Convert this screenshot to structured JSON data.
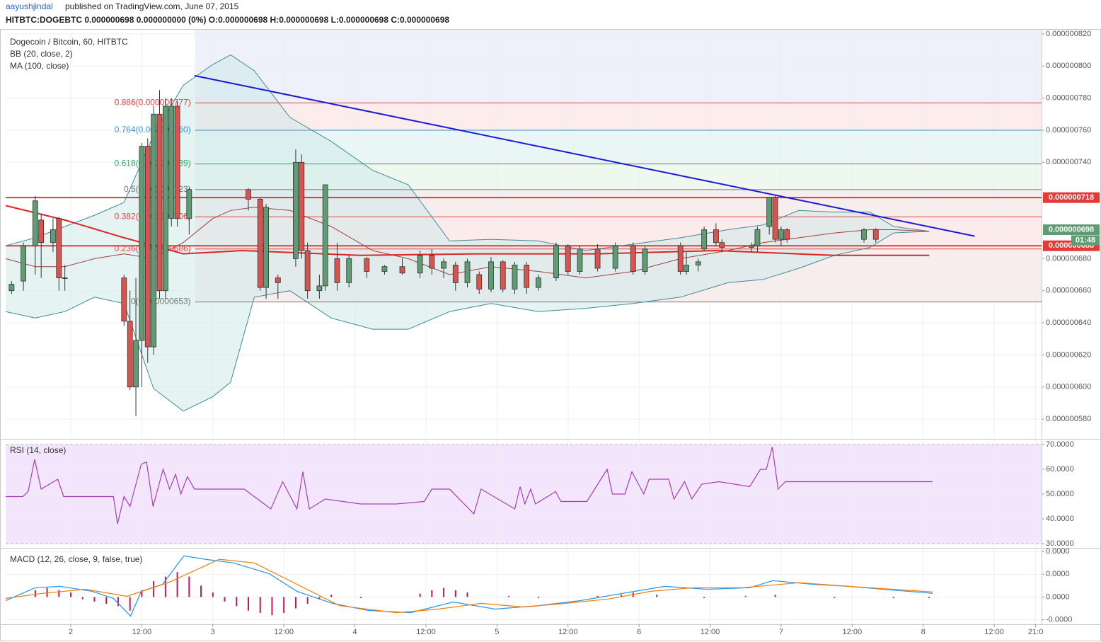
{
  "header": {
    "author": "aayushjindal",
    "byline": "published on TradingView.com, June 07, 2015",
    "quote": "HITBTC:DOGEBTC 0.000000698 0.000000000 (0%) O:0.000000698 H:0.000000698 L:0.000000698 C:0.000000698"
  },
  "chart_data": [
    {
      "type": "candlestick",
      "title": "Dogecoin / Bitcoin, 60, HITBTC",
      "up_color": "#5f9c73",
      "down_color": "#d9534f",
      "xlim": [
        0,
        175
      ],
      "ylim": [
        5.677e-07,
        8.226e-07
      ],
      "grid": true,
      "yticks": [
        {
          "value": 8.2e-07,
          "label": "0.000000820"
        },
        {
          "value": 8e-07,
          "label": "0.000000800"
        },
        {
          "value": 7.8e-07,
          "label": "0.000000780"
        },
        {
          "value": 7.6e-07,
          "label": "0.000000760"
        },
        {
          "value": 7.4e-07,
          "label": "0.000000740"
        },
        {
          "value": 6.8e-07,
          "label": "0.000000680"
        },
        {
          "value": 6.6e-07,
          "label": "0.000000660"
        },
        {
          "value": 6.4e-07,
          "label": "0.000000640"
        },
        {
          "value": 6.2e-07,
          "label": "0.000000620"
        },
        {
          "value": 6e-07,
          "label": "0.000000600"
        },
        {
          "value": 5.8e-07,
          "label": "0.000000580"
        }
      ],
      "x": [
        1,
        3,
        5,
        6,
        8,
        9,
        10,
        20,
        21,
        22,
        23,
        24,
        25,
        26,
        27,
        28,
        29,
        31,
        41,
        43,
        44,
        46,
        49,
        50,
        51,
        53,
        54,
        56,
        58,
        61,
        64,
        67,
        70,
        72,
        74,
        76,
        78,
        80,
        82,
        84,
        86,
        88,
        90,
        93,
        95,
        97,
        100,
        103,
        106,
        108,
        114,
        115,
        117,
        118,
        120,
        121,
        126,
        127,
        129,
        130,
        131,
        132,
        145,
        147
      ],
      "open": [
        6.6e-07,
        6.66e-07,
        6.88e-07,
        7.04e-07,
        6.9e-07,
        7.05e-07,
        6.68e-07,
        6.68e-07,
        6.41e-07,
        6e-07,
        6.29e-07,
        7.5e-07,
        6.25e-07,
        7.7e-07,
        6.6e-07,
        7.05e-07,
        7.75e-07,
        7.05e-07,
        7.23e-07,
        7.17e-07,
        6.62e-07,
        6.68e-07,
        6.8e-07,
        7.4e-07,
        6.85e-07,
        6.6e-07,
        6.63e-07,
        6.8e-07,
        6.65e-07,
        6.8e-07,
        6.72e-07,
        6.75e-07,
        6.71e-07,
        6.82e-07,
        6.74e-07,
        6.76e-07,
        6.65e-07,
        6.7e-07,
        6.61e-07,
        6.78e-07,
        6.61e-07,
        6.76e-07,
        6.62e-07,
        6.68e-07,
        6.88e-07,
        6.72e-07,
        6.86e-07,
        6.74e-07,
        6.88e-07,
        6.72e-07,
        6.88e-07,
        6.72e-07,
        6.76e-07,
        6.86e-07,
        6.98e-07,
        6.9e-07,
        6.87e-07,
        6.88e-07,
        7e-07,
        7.18e-07,
        6.92e-07,
        6.98e-07,
        6.92e-07,
        6.98e-07
      ],
      "high": [
        6.66e-07,
        6.9e-07,
        7.19e-07,
        7.08e-07,
        7.05e-07,
        7.06e-07,
        6.76e-07,
        6.7e-07,
        6.6e-07,
        6.68e-07,
        7.52e-07,
        7.55e-07,
        7.75e-07,
        7.85e-07,
        7.8e-07,
        7.8e-07,
        7.78e-07,
        7.24e-07,
        7.24e-07,
        7.18e-07,
        7.14e-07,
        6.7e-07,
        7.48e-07,
        7.45e-07,
        6.9e-07,
        6.7e-07,
        7.26e-07,
        6.9e-07,
        6.82e-07,
        6.81e-07,
        6.76e-07,
        6.8e-07,
        6.85e-07,
        6.86e-07,
        6.8e-07,
        6.78e-07,
        6.8e-07,
        6.72e-07,
        6.81e-07,
        6.79e-07,
        6.78e-07,
        6.78e-07,
        6.7e-07,
        6.9e-07,
        6.89e-07,
        6.88e-07,
        6.89e-07,
        6.9e-07,
        6.9e-07,
        6.88e-07,
        6.9e-07,
        6.84e-07,
        6.8e-07,
        7e-07,
        7.02e-07,
        6.92e-07,
        6.9e-07,
        7e-07,
        7.18e-07,
        7.19e-07,
        7e-07,
        6.99e-07,
        6.99e-07,
        6.99e-07
      ],
      "low": [
        6.58e-07,
        6.6e-07,
        6.7e-07,
        6.68e-07,
        6.84e-07,
        6.6e-07,
        6.6e-07,
        6.38e-07,
        5.98e-07,
        5.82e-07,
        6e-07,
        6.15e-07,
        6.2e-07,
        6.55e-07,
        6.55e-07,
        7e-07,
        7e-07,
        6.95e-07,
        7.1e-07,
        6.6e-07,
        6.55e-07,
        6.55e-07,
        6.75e-07,
        6.8e-07,
        6.55e-07,
        6.55e-07,
        6.6e-07,
        6.6e-07,
        6.62e-07,
        6.68e-07,
        6.7e-07,
        6.7e-07,
        6.68e-07,
        6.7e-07,
        6.68e-07,
        6.6e-07,
        6.62e-07,
        6.58e-07,
        6.59e-07,
        6.59e-07,
        6.58e-07,
        6.58e-07,
        6.6e-07,
        6.66e-07,
        6.7e-07,
        6.7e-07,
        6.72e-07,
        6.72e-07,
        6.7e-07,
        6.7e-07,
        6.7e-07,
        6.7e-07,
        6.72e-07,
        6.85e-07,
        6.88e-07,
        6.84e-07,
        6.84e-07,
        6.84e-07,
        6.95e-07,
        6.9e-07,
        6.88e-07,
        6.9e-07,
        6.9e-07,
        6.9e-07
      ],
      "close": [
        6.64e-07,
        6.88e-07,
        7.16e-07,
        6.9e-07,
        6.98e-07,
        6.68e-07,
        6.68e-07,
        6.41e-07,
        6e-07,
        6.29e-07,
        7.5e-07,
        6.25e-07,
        7.7e-07,
        6.6e-07,
        7.75e-07,
        7.75e-07,
        7.05e-07,
        7.23e-07,
        7.17e-07,
        6.62e-07,
        7.12e-07,
        6.65e-07,
        7.4e-07,
        6.85e-07,
        6.6e-07,
        6.63e-07,
        7.26e-07,
        6.65e-07,
        6.8e-07,
        6.72e-07,
        6.75e-07,
        6.71e-07,
        6.82e-07,
        6.74e-07,
        6.78e-07,
        6.65e-07,
        6.78e-07,
        6.61e-07,
        6.78e-07,
        6.61e-07,
        6.76e-07,
        6.62e-07,
        6.68e-07,
        6.88e-07,
        6.72e-07,
        6.86e-07,
        6.74e-07,
        6.88e-07,
        6.72e-07,
        6.86e-07,
        6.72e-07,
        6.76e-07,
        6.78e-07,
        6.98e-07,
        6.9e-07,
        6.87e-07,
        6.88e-07,
        6.98e-07,
        7.18e-07,
        6.92e-07,
        6.98e-07,
        6.92e-07,
        6.98e-07,
        6.92e-07
      ],
      "bollinger": {
        "name": "BB (20, close, 2)",
        "color": "#3d8b96",
        "fill": "#cfeaea",
        "x": [
          0,
          5,
          10,
          15,
          20,
          25,
          30,
          35,
          38,
          42,
          48,
          55,
          62,
          68,
          75,
          82,
          90,
          98,
          106,
          114,
          122,
          128,
          134,
          140,
          146,
          150,
          156
        ],
        "upper": [
          6.88e-07,
          6.93e-07,
          7e-07,
          7.07e-07,
          7.15e-07,
          7.57e-07,
          7.88e-07,
          8.01e-07,
          8.07e-07,
          7.97e-07,
          7.68e-07,
          7.53e-07,
          7.35e-07,
          7.26e-07,
          6.91e-07,
          6.92e-07,
          6.91e-07,
          6.85e-07,
          6.89e-07,
          6.93e-07,
          6.98e-07,
          7.01e-07,
          7.1e-07,
          7.09e-07,
          7.09e-07,
          7e-07,
          6.97e-07
        ],
        "basis": [
          6.8e-07,
          6.75e-07,
          6.75e-07,
          6.8e-07,
          6.83e-07,
          6.8e-07,
          6.9e-07,
          7.05e-07,
          7.1e-07,
          7.12e-07,
          7.1e-07,
          7e-07,
          6.85e-07,
          6.8e-07,
          6.7e-07,
          6.75e-07,
          6.72e-07,
          6.68e-07,
          6.72e-07,
          6.8e-07,
          6.85e-07,
          6.9e-07,
          6.93e-07,
          6.96e-07,
          6.98e-07,
          6.98e-07,
          6.97e-07
        ],
        "lower": [
          6.47e-07,
          6.43e-07,
          6.47e-07,
          6.56e-07,
          6.52e-07,
          5.99e-07,
          5.85e-07,
          5.94e-07,
          6.03e-07,
          6.56e-07,
          6.6e-07,
          6.43e-07,
          6.36e-07,
          6.36e-07,
          6.47e-07,
          6.52e-07,
          6.47e-07,
          6.49e-07,
          6.52e-07,
          6.56e-07,
          6.65e-07,
          6.67e-07,
          6.74e-07,
          6.82e-07,
          6.87e-07,
          6.96e-07,
          6.97e-07
        ],
        "basis_color": "#a0403c"
      },
      "ma": {
        "name": "MA (100, close)",
        "color": "#e02424",
        "x": [
          0,
          10,
          20,
          30,
          40,
          60,
          80,
          100,
          120,
          140,
          156
        ],
        "values": [
          7.13e-07,
          7.04e-07,
          6.93e-07,
          6.83e-07,
          6.85e-07,
          6.82e-07,
          6.83e-07,
          6.83e-07,
          6.85e-07,
          6.82e-07,
          6.82e-07
        ]
      },
      "fib": {
        "x_start": 32,
        "levels": [
          {
            "label": "0.886(0.000000777)",
            "value": 7.77e-07,
            "color": "#e04343",
            "fill": "#eef0fa"
          },
          {
            "label": "0.764(0.000000760)",
            "value": 7.6e-07,
            "color": "#3a8fd9",
            "fill": "#fcecec"
          },
          {
            "label": "0.618(0.000000739)",
            "value": 7.39e-07,
            "color": "#2ea66a",
            "fill": "#eaf6f6"
          },
          {
            "label": "0.5(0.000000723)",
            "value": 7.23e-07,
            "color": "#777777",
            "fill": "#eef8ef"
          },
          {
            "label": "0.382(0.000000706)",
            "value": 7.06e-07,
            "color": "#e04343",
            "fill": "#f6eded"
          },
          {
            "label": "0.236(0.000000686)",
            "value": 6.86e-07,
            "color": "#e04343",
            "fill": "#fcebeb"
          },
          {
            "label": "0(0.000000653)",
            "value": 6.53e-07,
            "color": "#777777",
            "fill": "#f7eded"
          }
        ]
      },
      "trendline": {
        "x": [
          31.9,
          163.7
        ],
        "values": [
          7.94e-07,
          6.94e-07
        ],
        "color": "#1a1ad6"
      },
      "hlines": [
        {
          "value": 7.18e-07,
          "label": "0.000000718",
          "color": "#e53935"
        },
        {
          "value": 6.88e-07,
          "label": "0.000000688",
          "color": "#e53935"
        }
      ],
      "last_price": {
        "value": 6.98e-07,
        "label": "0.000000698",
        "countdown": "01:48",
        "color": "#5f9c73"
      }
    },
    {
      "type": "line",
      "title": "RSI (14, close)",
      "xlim": [
        0,
        175
      ],
      "ylim": [
        28.3,
        71.7
      ],
      "grid": true,
      "band": [
        30,
        70
      ],
      "band_fill": "#f3e5fb",
      "yticks": [
        {
          "value": 70,
          "label": "70.0000"
        },
        {
          "value": 60,
          "label": "60.0000"
        },
        {
          "value": 50,
          "label": "50.0000"
        },
        {
          "value": 40,
          "label": "40.0000"
        },
        {
          "value": 30,
          "label": "30.0000"
        }
      ],
      "series": [
        {
          "color": "#a340b4",
          "x": [
            0,
            2.9,
            3.8,
            4.9,
            6,
            8.8,
            9.8,
            18.2,
            18.9,
            20,
            21,
            22.9,
            23.8,
            24.9,
            26.6,
            27.7,
            28.7,
            29.6,
            30.7,
            31.9,
            40.3,
            44.8,
            46.8,
            49.2,
            50.2,
            51.3,
            54,
            60,
            66,
            70.7,
            72,
            75,
            79.1,
            80.3,
            86,
            86.9,
            87.7,
            88.7,
            89.5,
            92.9,
            93.8,
            98.2,
            101.6,
            102.5,
            104.6,
            105.8,
            107.8,
            108.7,
            112,
            112.9,
            114.7,
            115.9,
            117.6,
            120.5,
            125.7,
            127.5,
            128.5,
            129.5,
            130.5,
            131.7,
            135.3,
            156.6
          ],
          "values": [
            49,
            49,
            51,
            64,
            52,
            56,
            49,
            49,
            38,
            49,
            45,
            62,
            63,
            45,
            60,
            52,
            58,
            50,
            57,
            52,
            52,
            44,
            55,
            44,
            59,
            44,
            48,
            46,
            46,
            47,
            52,
            52,
            42,
            52,
            44,
            53,
            46,
            52,
            46,
            51,
            47,
            47,
            60,
            50,
            50,
            59,
            50,
            56,
            56,
            48,
            55,
            48,
            54,
            55,
            53,
            60,
            60,
            69,
            52,
            55,
            55,
            55
          ]
        }
      ]
    },
    {
      "type": "line",
      "title": "MACD (12, 26, close, 9, false, true)",
      "xlim": [
        0,
        175
      ],
      "ylim": [
        -1.2e-09,
        2.1e-09
      ],
      "grid": true,
      "yticks": [
        {
          "value": 2e-09,
          "label": "0.0000"
        },
        {
          "value": 1e-09,
          "label": "0.0000"
        },
        {
          "value": 0,
          "label": "0.0000"
        },
        {
          "value": -1e-09,
          "label": "-0.0000"
        }
      ],
      "xticks": [
        {
          "value": 11,
          "label": "2"
        },
        {
          "value": 23,
          "label": "12:00"
        },
        {
          "value": 35,
          "label": "3"
        },
        {
          "value": 47,
          "label": "12:00"
        },
        {
          "value": 59,
          "label": "4"
        },
        {
          "value": 71,
          "label": "12:00"
        },
        {
          "value": 83,
          "label": "5"
        },
        {
          "value": 95,
          "label": "12:00"
        },
        {
          "value": 107,
          "label": "6"
        },
        {
          "value": 119,
          "label": "12:00"
        },
        {
          "value": 131,
          "label": "7"
        },
        {
          "value": 143,
          "label": "12:00"
        },
        {
          "value": 155,
          "label": "8"
        },
        {
          "value": 167,
          "label": "12:00"
        },
        {
          "value": 174,
          "label": "21:0"
        }
      ],
      "histogram": {
        "color": "#c2185b",
        "x": [
          5,
          7,
          9,
          11,
          13,
          15,
          17,
          19,
          21,
          23,
          25,
          27,
          29,
          31,
          33,
          35,
          37,
          39,
          41,
          43,
          45,
          47,
          49,
          51,
          53,
          55,
          60,
          70,
          72,
          74,
          76,
          78,
          85,
          90,
          100,
          104,
          106,
          110,
          118,
          125,
          130,
          140,
          150,
          156
        ],
        "values": [
          3e-10,
          4e-10,
          3e-10,
          2e-10,
          -1e-10,
          -2e-10,
          -3e-10,
          -4e-10,
          -6e-10,
          3e-10,
          7e-10,
          9e-10,
          1.1e-09,
          9e-10,
          5e-10,
          2e-10,
          -2e-10,
          -4e-10,
          -6e-10,
          -7e-10,
          -8e-10,
          -7e-10,
          -5e-10,
          -3e-10,
          -1e-10,
          1e-10,
          -5e-11,
          1.5e-10,
          3e-10,
          4e-10,
          3e-10,
          2e-10,
          5e-11,
          -5e-11,
          5e-11,
          1e-10,
          2e-10,
          1e-10,
          -5e-11,
          5e-11,
          1e-10,
          -5e-11,
          -5e-11,
          -5e-11
        ]
      },
      "series": [
        {
          "color": "#2196f3",
          "x": [
            0,
            5,
            9.2,
            14.6,
            18.2,
            21.1,
            22.9,
            26.5,
            30.1,
            33.7,
            38.5,
            44.5,
            49.2,
            55.2,
            61.2,
            68.4,
            75.6,
            82.7,
            89.9,
            97,
            104.2,
            111.4,
            118.5,
            125.7,
            129.6,
            136.4,
            142.4,
            156.6
          ],
          "values": [
            -1.6e-10,
            4.1e-10,
            4.7e-10,
            2.5e-10,
            -6e-11,
            -8.4e-10,
            2.5e-10,
            5.6e-10,
            1.81e-09,
            1.66e-09,
            1.5e-09,
            1.03e-09,
            2.5e-10,
            -2.8e-10,
            -5.9e-10,
            -6.9e-10,
            -2.2e-10,
            -5.3e-10,
            -3.8e-10,
            -1.6e-10,
            1.6e-10,
            4.7e-10,
            3.4e-10,
            4.1e-10,
            7.2e-10,
            5.6e-10,
            4.7e-10,
            1.6e-10
          ]
        },
        {
          "color": "#f57c00",
          "x": [
            0,
            6.2,
            13.4,
            20.5,
            27.7,
            36.1,
            42,
            49.2,
            56.4,
            66,
            73.1,
            80.3,
            87.5,
            94.6,
            101.8,
            109,
            116.2,
            124.5,
            134.1,
            142.4,
            156.6
          ],
          "values": [
            -6e-11,
            1.6e-10,
            3.4e-10,
            3e-11,
            6.6e-10,
            1.66e-09,
            1.5e-09,
            5.6e-10,
            -3.8e-10,
            -6.9e-10,
            -5.3e-10,
            -2.8e-10,
            -4.4e-10,
            -2.8e-10,
            -9e-11,
            2.5e-10,
            4.1e-10,
            4.1e-10,
            6.3e-10,
            4.7e-10,
            2.2e-10
          ]
        }
      ]
    }
  ]
}
